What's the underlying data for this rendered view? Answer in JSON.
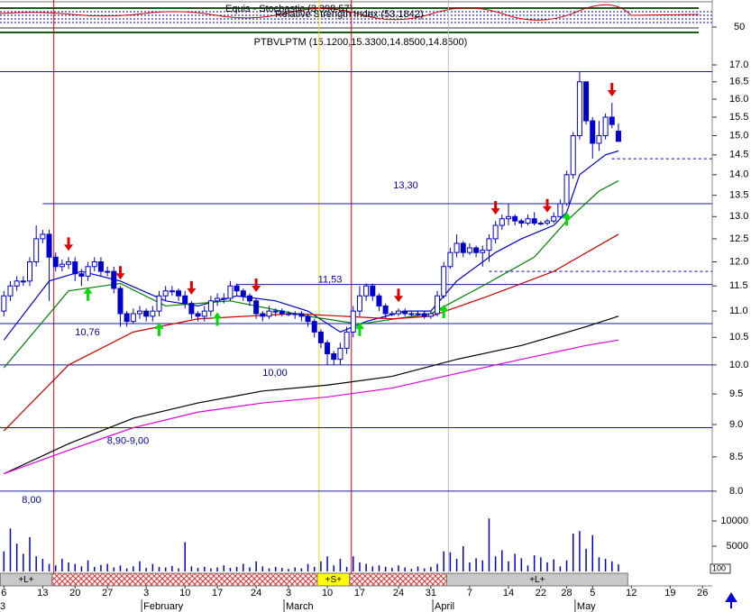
{
  "chart_data": {
    "type": "candlestick",
    "title": "PTBVLPTM (15.1200,15.3300,14.8500,14.8500)",
    "indicator": {
      "labels": [
        "Equis - Stochastic (3,398.57)",
        "Relative Strength Index (53.1842)"
      ],
      "yticks": [
        50
      ]
    },
    "log_y": true,
    "xlim": [
      -0.6,
      109.5
    ],
    "ylim": [
      7.81,
      17.89
    ],
    "yticks": [
      {
        "value": 8,
        "label": "8.0"
      },
      {
        "value": 8.5,
        "label": "8.5"
      },
      {
        "value": 9,
        "label": "9.0"
      },
      {
        "value": 9.5,
        "label": "9.5"
      },
      {
        "value": 10,
        "label": "10.0"
      },
      {
        "value": 10.5,
        "label": "10.5"
      },
      {
        "value": 11,
        "label": "11.0"
      },
      {
        "value": 11.5,
        "label": "11.5"
      },
      {
        "value": 12,
        "label": "12.0"
      },
      {
        "value": 12.5,
        "label": "12.5"
      },
      {
        "value": 13,
        "label": "13.0"
      },
      {
        "value": 13.5,
        "label": "13.5"
      },
      {
        "value": 14,
        "label": "14.0"
      },
      {
        "value": 14.5,
        "label": "14.5"
      },
      {
        "value": 15,
        "label": "15.0"
      },
      {
        "value": 15.5,
        "label": "15.5"
      },
      {
        "value": 16,
        "label": "16.0"
      },
      {
        "value": 16.5,
        "label": "16.5"
      },
      {
        "value": 17,
        "label": "17.0"
      }
    ],
    "xticks": [
      {
        "value": 0,
        "label": "6"
      },
      {
        "value": 6,
        "label": "13"
      },
      {
        "value": 11,
        "label": "20"
      },
      {
        "value": 16,
        "label": "27"
      },
      {
        "value": 22,
        "label": "3"
      },
      {
        "value": 28,
        "label": "10"
      },
      {
        "value": 33,
        "label": "17"
      },
      {
        "value": 39,
        "label": "24"
      },
      {
        "value": 44,
        "label": "3"
      },
      {
        "value": 50,
        "label": "10"
      },
      {
        "value": 55,
        "label": "17"
      },
      {
        "value": 61,
        "label": "24"
      },
      {
        "value": 66,
        "label": "31"
      },
      {
        "value": 72,
        "label": "7"
      },
      {
        "value": 78,
        "label": "14"
      },
      {
        "value": 83,
        "label": "22"
      },
      {
        "value": 87,
        "label": "28"
      },
      {
        "value": 91,
        "label": "5"
      },
      {
        "value": 97,
        "label": "12"
      },
      {
        "value": 103,
        "label": "19"
      },
      {
        "value": 108,
        "label": "26"
      }
    ],
    "months": [
      {
        "value": 0,
        "label": "3"
      },
      {
        "value": 22,
        "label": "February"
      },
      {
        "value": 44,
        "label": "March"
      },
      {
        "value": 67,
        "label": "April"
      },
      {
        "value": 89,
        "label": "May"
      }
    ],
    "open": [
      11.0,
      11.3,
      11.5,
      11.6,
      11.6,
      12.0,
      12.5,
      12.6,
      12.1,
      11.9,
      11.95,
      12.0,
      11.75,
      11.7,
      11.9,
      12.0,
      11.8,
      11.8,
      11.45,
      10.95,
      10.8,
      10.95,
      11.0,
      10.9,
      11.0,
      11.3,
      11.4,
      11.4,
      11.3,
      11.15,
      10.95,
      10.9,
      11.0,
      11.2,
      11.25,
      11.25,
      11.5,
      11.4,
      11.3,
      11.2,
      10.95,
      10.9,
      11.0,
      11.0,
      10.95,
      10.95,
      10.95,
      10.9,
      10.8,
      10.6,
      10.4,
      10.2,
      10.1,
      10.3,
      10.6,
      11.0,
      11.3,
      11.5,
      11.3,
      11.1,
      10.95,
      10.95,
      11.0,
      10.95,
      10.95,
      10.95,
      10.9,
      10.95,
      11.3,
      11.9,
      12.2,
      12.4,
      12.2,
      12.3,
      12.2,
      12.25,
      12.5,
      12.8,
      12.95,
      13.0,
      12.9,
      12.85,
      12.95,
      12.85,
      12.85,
      12.9,
      13.0,
      13.3,
      14.0,
      15.0,
      16.5,
      15.4,
      14.8,
      15.0,
      15.5,
      15.12
    ],
    "high": [
      11.4,
      11.6,
      11.7,
      11.7,
      12.1,
      12.8,
      12.7,
      12.7,
      12.2,
      12.05,
      12.1,
      12.1,
      11.85,
      12.0,
      12.1,
      12.1,
      11.9,
      11.9,
      11.5,
      11.0,
      11.05,
      11.1,
      11.05,
      11.1,
      11.4,
      11.5,
      11.5,
      11.45,
      11.4,
      11.2,
      11.0,
      11.1,
      11.3,
      11.35,
      11.35,
      11.6,
      11.55,
      11.45,
      11.35,
      11.25,
      11.0,
      11.1,
      11.05,
      11.05,
      11.0,
      11.0,
      11.0,
      10.95,
      10.85,
      10.65,
      10.45,
      10.25,
      10.4,
      10.7,
      11.1,
      11.5,
      11.55,
      11.55,
      11.35,
      11.15,
      11.0,
      11.05,
      11.05,
      11.0,
      11.0,
      11.0,
      11.0,
      11.4,
      12.0,
      12.3,
      12.6,
      12.45,
      12.4,
      12.35,
      12.35,
      12.6,
      12.9,
      13.05,
      13.3,
      13.05,
      12.95,
      13.05,
      13.1,
      12.9,
      12.95,
      13.1,
      13.4,
      14.1,
      15.1,
      16.8,
      16.5,
      15.5,
      15.4,
      15.6,
      15.9,
      15.33
    ],
    "low": [
      10.9,
      11.2,
      11.4,
      11.5,
      11.5,
      11.9,
      12.4,
      11.2,
      11.8,
      11.8,
      11.85,
      11.6,
      11.5,
      11.6,
      11.8,
      11.7,
      11.7,
      11.35,
      10.7,
      10.7,
      10.75,
      10.85,
      10.8,
      10.8,
      10.9,
      11.2,
      11.3,
      11.2,
      11.05,
      10.85,
      10.8,
      10.8,
      10.9,
      11.1,
      11.15,
      11.2,
      11.3,
      11.2,
      11.1,
      10.85,
      10.8,
      10.85,
      10.9,
      10.9,
      10.9,
      10.85,
      10.8,
      10.7,
      10.5,
      10.3,
      10.0,
      10.0,
      10.0,
      10.2,
      10.5,
      10.9,
      11.2,
      11.2,
      11.0,
      10.85,
      10.9,
      10.9,
      10.9,
      10.9,
      10.9,
      10.85,
      10.85,
      10.9,
      11.25,
      11.85,
      12.1,
      12.1,
      12.15,
      12.1,
      11.9,
      12.0,
      12.4,
      12.7,
      12.8,
      12.8,
      12.75,
      12.8,
      12.8,
      12.8,
      12.8,
      12.85,
      12.95,
      13.25,
      13.9,
      14.9,
      15.3,
      14.4,
      14.6,
      14.9,
      15.2,
      14.85
    ],
    "close": [
      11.3,
      11.5,
      11.6,
      11.6,
      12.0,
      12.5,
      12.6,
      12.1,
      11.9,
      11.95,
      12.0,
      11.75,
      11.7,
      11.9,
      12.0,
      11.8,
      11.8,
      11.45,
      10.95,
      10.8,
      10.95,
      11.0,
      10.9,
      11.0,
      11.3,
      11.4,
      11.4,
      11.3,
      11.15,
      10.95,
      10.9,
      11.0,
      11.2,
      11.25,
      11.25,
      11.5,
      11.4,
      11.3,
      11.2,
      10.95,
      10.9,
      11.0,
      11.0,
      10.95,
      10.95,
      10.95,
      10.9,
      10.8,
      10.6,
      10.4,
      10.2,
      10.1,
      10.3,
      10.6,
      11.0,
      11.3,
      11.5,
      11.3,
      11.1,
      10.95,
      10.95,
      11.0,
      10.95,
      10.95,
      10.95,
      10.9,
      10.95,
      11.3,
      11.9,
      12.2,
      12.4,
      12.2,
      12.3,
      12.2,
      12.25,
      12.5,
      12.8,
      12.95,
      13.0,
      12.9,
      12.85,
      12.95,
      12.85,
      12.85,
      12.9,
      13.0,
      13.3,
      14.0,
      15.0,
      16.5,
      15.4,
      14.8,
      15.0,
      15.5,
      15.3,
      14.85
    ],
    "up_color": "#ffffff",
    "down_color": "#0000cc",
    "moving_averages": [
      {
        "color": "#0000cc",
        "x": [
          0,
          7,
          12,
          18,
          25,
          30,
          36,
          42,
          47,
          52,
          56,
          62,
          66,
          70,
          76,
          80,
          85,
          87,
          89,
          93,
          95
        ],
        "values": [
          10.45,
          11.6,
          11.8,
          11.6,
          11.2,
          11.1,
          11.3,
          11.2,
          11.0,
          10.6,
          10.8,
          11.0,
          11.0,
          11.6,
          12.2,
          12.5,
          12.8,
          13.1,
          14.0,
          14.5,
          14.6
        ]
      },
      {
        "color": "#008000",
        "x": [
          0,
          10,
          18,
          25,
          35,
          47,
          55,
          66,
          74,
          82,
          87,
          92,
          95
        ],
        "values": [
          9.95,
          11.4,
          11.55,
          11.1,
          11.2,
          10.9,
          10.75,
          10.95,
          11.5,
          12.1,
          12.9,
          13.6,
          13.85
        ]
      },
      {
        "color": "#cc0000",
        "x": [
          0,
          10,
          20,
          30,
          45,
          60,
          66,
          75,
          85,
          95
        ],
        "values": [
          8.9,
          10.0,
          10.6,
          10.85,
          10.95,
          10.85,
          10.9,
          11.3,
          11.8,
          12.6
        ]
      },
      {
        "color": "#000000",
        "x": [
          0,
          10,
          20,
          30,
          40,
          50,
          60,
          70,
          80,
          90,
          95
        ],
        "values": [
          8.25,
          8.7,
          9.1,
          9.35,
          9.55,
          9.65,
          9.8,
          10.1,
          10.35,
          10.7,
          10.9
        ]
      },
      {
        "color": "#dd00dd",
        "x": [
          0,
          10,
          20,
          30,
          40,
          50,
          60,
          70,
          80,
          90,
          95
        ],
        "values": [
          8.25,
          8.6,
          8.95,
          9.2,
          9.35,
          9.45,
          9.6,
          9.85,
          10.1,
          10.35,
          10.45
        ]
      }
    ],
    "hlines": [
      {
        "value": 16.8
      },
      {
        "value": 13.3,
        "from": 6,
        "label": "13,30"
      },
      {
        "value": 11.53,
        "from": 36,
        "label": "11,53"
      },
      {
        "value": 10.76,
        "label": "10,76"
      },
      {
        "value": 10.0,
        "label": "10,00"
      },
      {
        "value": 8.95,
        "label": "8,90-9,00"
      },
      {
        "value": 8.0,
        "label": "8,00"
      },
      {
        "value": 14.4,
        "from": 94,
        "dashed": true
      },
      {
        "value": 11.8,
        "from": 75,
        "dashed": true
      }
    ],
    "vlines": [
      {
        "x": 8,
        "color": "#dd0000"
      },
      {
        "x": 49,
        "color": "#f0e000"
      },
      {
        "x": 54,
        "color": "#dd0000"
      },
      {
        "x": 69,
        "color": "#bbbbbb"
      }
    ],
    "sell_signals": [
      10,
      18,
      29,
      39,
      61,
      76,
      84,
      94
    ],
    "buy_signals": [
      13,
      24,
      33,
      55,
      68,
      87
    ],
    "signal_color_sell": "#e00000",
    "signal_color_buy": "#00dd00",
    "bands": [
      {
        "start": 0,
        "end": 8,
        "label": "+L+",
        "color": "#c8c8c8"
      },
      {
        "start": 8,
        "end": 49,
        "color": "#e83030",
        "hatched": true
      },
      {
        "start": 49,
        "end": 54,
        "label": "+S+",
        "color": "#ffff00"
      },
      {
        "start": 54,
        "end": 69,
        "color": "#e83030",
        "hatched": true
      },
      {
        "start": 69,
        "end": 97,
        "label": "+L+",
        "color": "#c8c8c8"
      }
    ],
    "volume": [
      4000,
      8500,
      5500,
      3500,
      6800,
      3000,
      2500,
      1500,
      1200,
      2500,
      1800,
      1500,
      1000,
      2200,
      900,
      1300,
      1500,
      800,
      1200,
      600,
      1000,
      2000,
      700,
      1500,
      900,
      800,
      1100,
      600,
      5800,
      1000,
      700,
      900,
      600,
      800,
      1200,
      700,
      900,
      1500,
      800,
      2000,
      1000,
      600,
      900,
      700,
      500,
      800,
      600,
      1500,
      900,
      2000,
      3000,
      1200,
      2500,
      900,
      3000,
      1800,
      1500,
      1000,
      1200,
      900,
      700,
      1200,
      800,
      500,
      1000,
      600,
      900,
      1500,
      4000,
      3800,
      2500,
      5000,
      1800,
      2600,
      2200,
      10500,
      3000,
      4200,
      2000,
      3500,
      2600,
      1200,
      3200,
      2800,
      1800,
      2400,
      1000,
      2200,
      7500,
      8000,
      4500,
      7200,
      2800,
      2500,
      2000,
      1400
    ],
    "volume_color": "#0000cc",
    "volume_ylim": [
      0,
      11000
    ],
    "volume_yticks": [
      5000,
      10000
    ],
    "corner_label": "100"
  }
}
